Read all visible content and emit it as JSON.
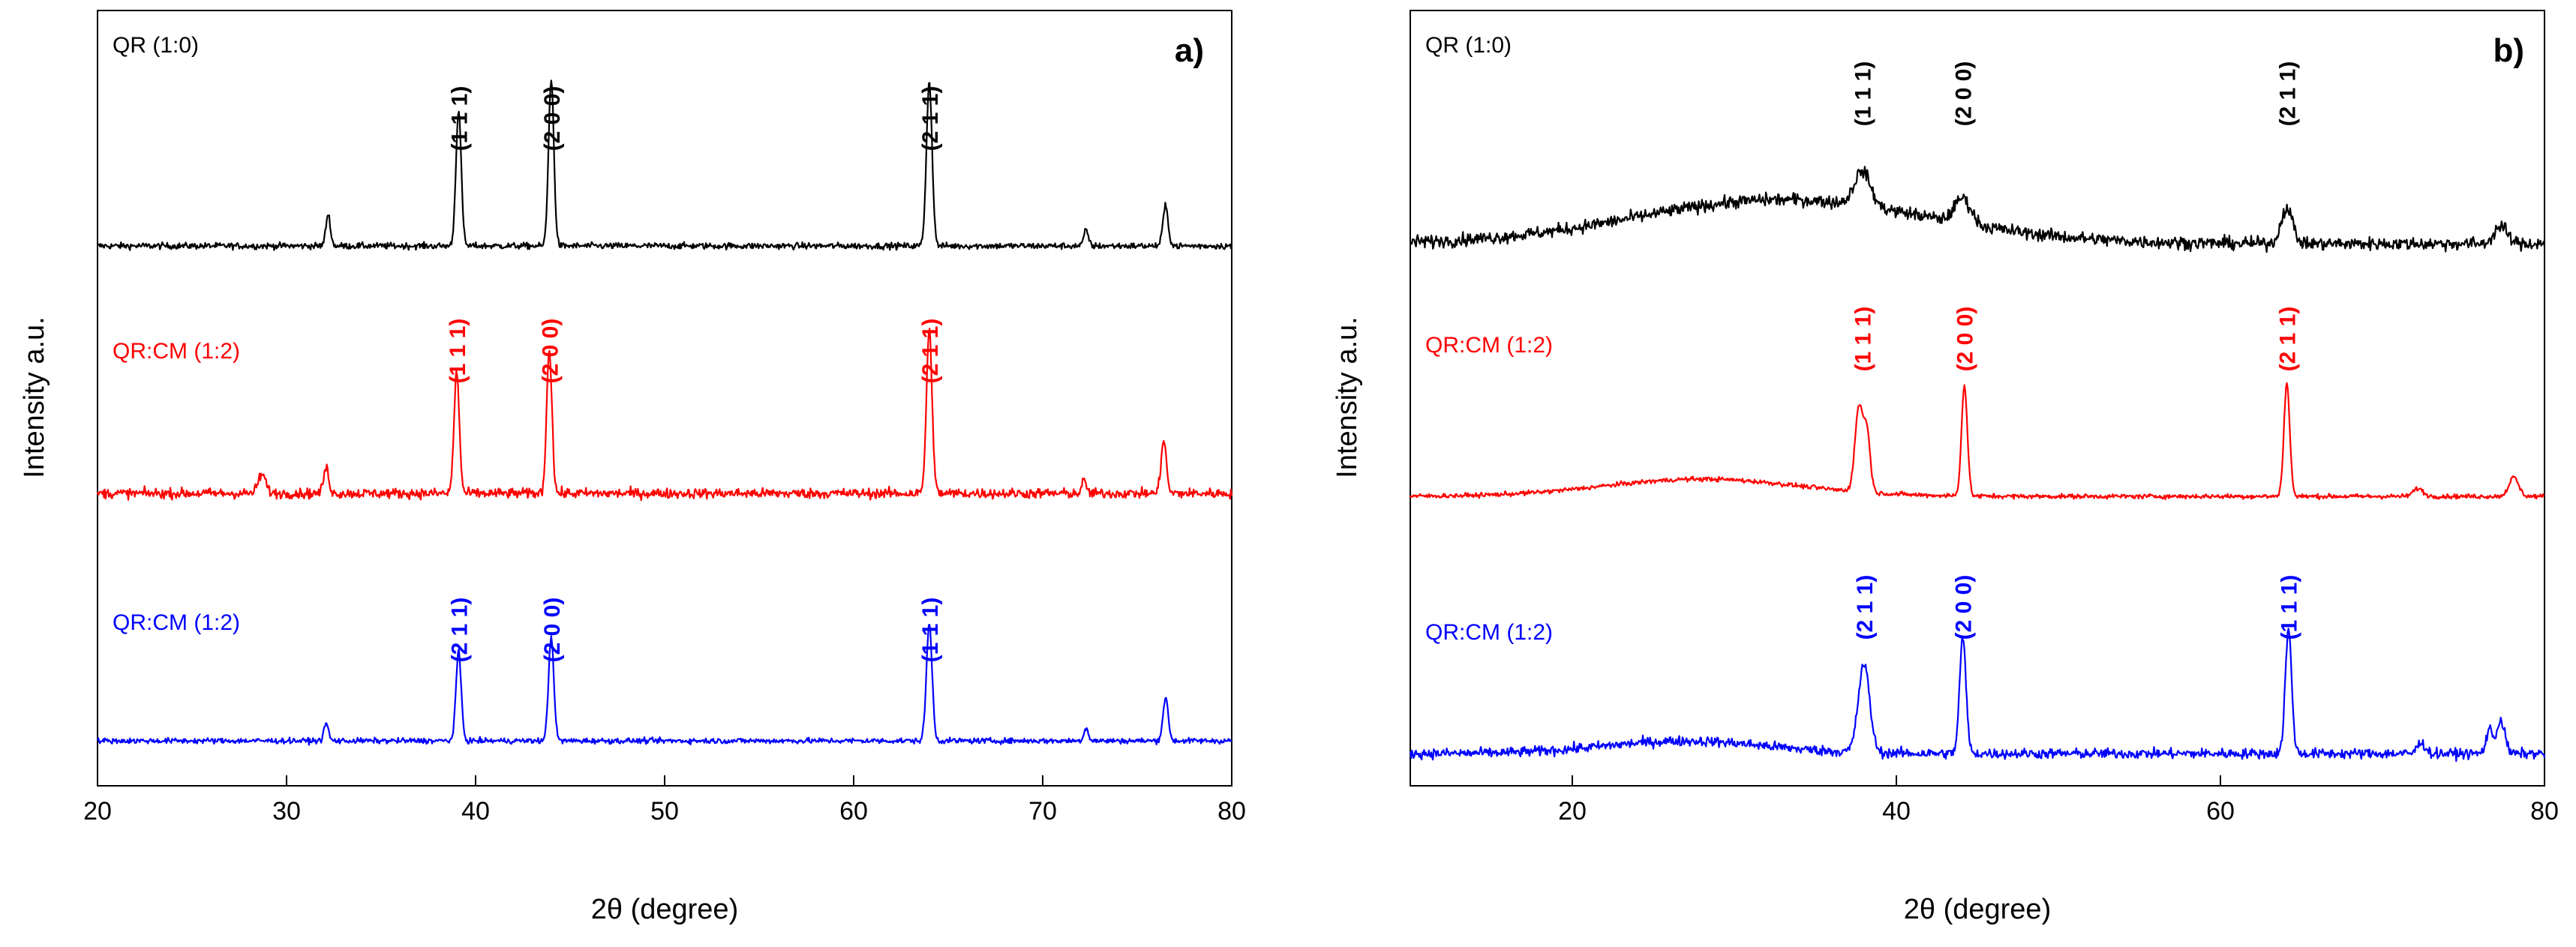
{
  "chart_data": [
    {
      "type": "line",
      "panel": "a)",
      "xlabel": "2θ (degree)",
      "ylabel": "Intensity a.u.",
      "xlim": [
        20,
        80
      ],
      "xticks": [
        20,
        30,
        40,
        50,
        60,
        70,
        80
      ],
      "y_ticks_shown": false,
      "series": [
        {
          "name": "QR (1:0)",
          "color": "#000000",
          "baseline": 0,
          "noise": 0.35,
          "peaks": [
            {
              "x": 32.2,
              "h": 2.0,
              "w": 0.12
            },
            {
              "x": 39.1,
              "h": 8.6,
              "w": 0.14
            },
            {
              "x": 44.0,
              "h": 10.6,
              "w": 0.14
            },
            {
              "x": 64.0,
              "h": 10.4,
              "w": 0.15
            },
            {
              "x": 72.3,
              "h": 1.0,
              "w": 0.12
            },
            {
              "x": 76.5,
              "h": 2.5,
              "w": 0.14
            }
          ],
          "hkl_labels": [
            {
              "x": 39.1,
              "text": "(1 1 1)"
            },
            {
              "x": 44.0,
              "text": "(2 0 0)"
            },
            {
              "x": 64.0,
              "text": "(2 1 1)"
            }
          ]
        },
        {
          "name": "QR:CM (1:2)",
          "color": "#ff0000",
          "baseline": 0,
          "noise": 0.55,
          "peaks": [
            {
              "x": 28.7,
              "h": 1.2,
              "w": 0.2
            },
            {
              "x": 32.1,
              "h": 1.6,
              "w": 0.14
            },
            {
              "x": 39.0,
              "h": 7.7,
              "w": 0.14
            },
            {
              "x": 43.9,
              "h": 9.2,
              "w": 0.14
            },
            {
              "x": 64.0,
              "h": 10.3,
              "w": 0.15
            },
            {
              "x": 72.2,
              "h": 0.8,
              "w": 0.12
            },
            {
              "x": 76.4,
              "h": 3.4,
              "w": 0.14
            }
          ],
          "hkl_labels": [
            {
              "x": 39.0,
              "text": "(1 1 1)"
            },
            {
              "x": 43.9,
              "text": "(2 0 0)"
            },
            {
              "x": 64.0,
              "text": "(2 1 1)"
            }
          ]
        },
        {
          "name": "QR:CM (1:2)",
          "color": "#0000ff",
          "baseline": 0,
          "noise": 0.3,
          "peaks": [
            {
              "x": 32.1,
              "h": 1.1,
              "w": 0.12
            },
            {
              "x": 39.1,
              "h": 5.6,
              "w": 0.14
            },
            {
              "x": 44.0,
              "h": 6.6,
              "w": 0.14
            },
            {
              "x": 64.0,
              "h": 7.4,
              "w": 0.15
            },
            {
              "x": 72.3,
              "h": 0.8,
              "w": 0.12
            },
            {
              "x": 76.5,
              "h": 2.7,
              "w": 0.14
            }
          ],
          "hkl_labels": [
            {
              "x": 39.1,
              "text": "(2 1 1)"
            },
            {
              "x": 44.0,
              "text": "(2 0 0)"
            },
            {
              "x": 64.0,
              "text": "(1 1 1)"
            }
          ]
        }
      ]
    },
    {
      "type": "line",
      "panel": "b)",
      "xlabel": "2θ (degree)",
      "ylabel": "Intensity a.u.",
      "xlim": [
        10,
        80
      ],
      "xticks": [
        20,
        40,
        60,
        80
      ],
      "y_ticks_shown": false,
      "series": [
        {
          "name": "QR (1:0)",
          "color": "#000000",
          "baseline": 0,
          "noise": 0.7,
          "hump": {
            "x": 33,
            "h": 2.8,
            "w": 9
          },
          "peaks": [
            {
              "x": 37.9,
              "h": 2.2,
              "w": 0.5
            },
            {
              "x": 44.1,
              "h": 1.6,
              "w": 0.5
            },
            {
              "x": 64.1,
              "h": 2.3,
              "w": 0.35
            },
            {
              "x": 77.3,
              "h": 1.1,
              "w": 0.4
            }
          ],
          "hkl_labels": [
            {
              "x": 37.9,
              "text": "(1 1 1)"
            },
            {
              "x": 44.1,
              "text": "(2 0 0)"
            },
            {
              "x": 64.1,
              "text": "(2 1 1)"
            }
          ]
        },
        {
          "name": "QR:CM (1:2)",
          "color": "#ff0000",
          "baseline": 0,
          "noise": 0.25,
          "hump": {
            "x": 28,
            "h": 1.1,
            "w": 6
          },
          "peaks": [
            {
              "x": 37.7,
              "h": 5.4,
              "w": 0.25
            },
            {
              "x": 38.2,
              "h": 3.5,
              "w": 0.2
            },
            {
              "x": 44.2,
              "h": 7.0,
              "w": 0.18
            },
            {
              "x": 64.1,
              "h": 7.2,
              "w": 0.18
            },
            {
              "x": 72.2,
              "h": 0.5,
              "w": 0.3
            },
            {
              "x": 78.1,
              "h": 1.2,
              "w": 0.3
            }
          ],
          "hkl_labels": [
            {
              "x": 37.9,
              "text": "(1 1 1)"
            },
            {
              "x": 44.2,
              "text": "(2 0 0)"
            },
            {
              "x": 64.1,
              "text": "(2 1 1)"
            }
          ]
        },
        {
          "name": "QR:CM (1:2)",
          "color": "#0000ff",
          "baseline": 0,
          "noise": 0.55,
          "hump": {
            "x": 27,
            "h": 0.8,
            "w": 5
          },
          "peaks": [
            {
              "x": 38.0,
              "h": 5.6,
              "w": 0.35
            },
            {
              "x": 44.1,
              "h": 7.3,
              "w": 0.2
            },
            {
              "x": 64.2,
              "h": 7.8,
              "w": 0.2
            },
            {
              "x": 72.4,
              "h": 0.7,
              "w": 0.25
            },
            {
              "x": 76.6,
              "h": 1.5,
              "w": 0.2
            },
            {
              "x": 77.3,
              "h": 2.1,
              "w": 0.25
            }
          ],
          "hkl_labels": [
            {
              "x": 38.0,
              "text": "(2 1 1)"
            },
            {
              "x": 44.1,
              "text": "(2 0 0)"
            },
            {
              "x": 64.2,
              "text": "(1 1 1)"
            }
          ]
        }
      ]
    }
  ]
}
